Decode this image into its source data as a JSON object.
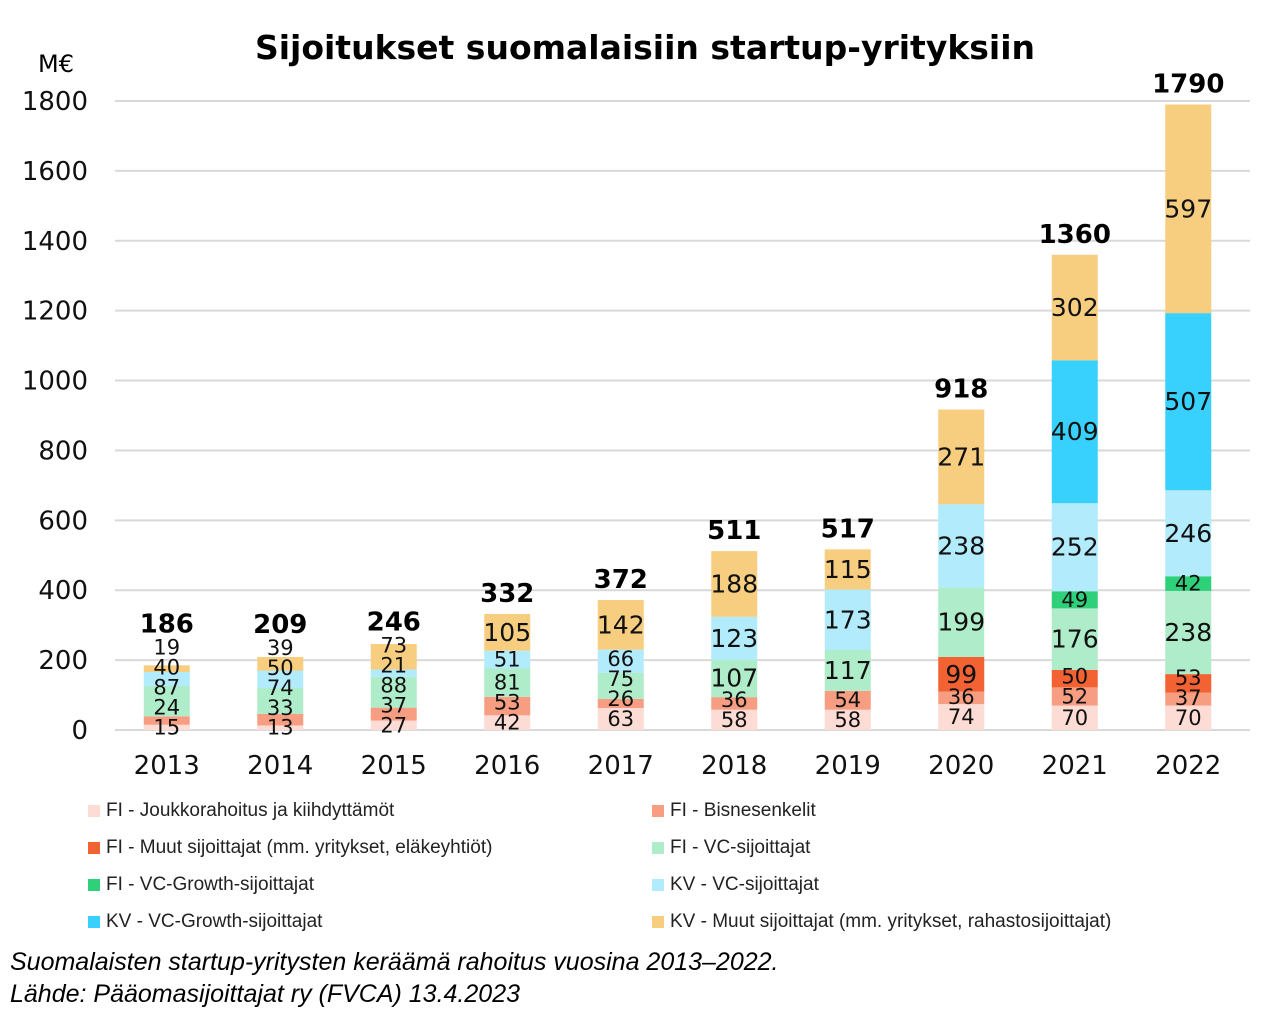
{
  "chart_data": {
    "type": "bar",
    "stacked": true,
    "title": "Sijoitukset suomalaisiin startup-yrityksiin",
    "ylabel": "M€",
    "xlabel": "",
    "ylim": [
      0,
      1800
    ],
    "yticks": [
      0,
      200,
      400,
      600,
      800,
      1000,
      1200,
      1400,
      1600,
      1800
    ],
    "grid": true,
    "legend_position": "bottom",
    "categories": [
      "2013",
      "2014",
      "2015",
      "2016",
      "2017",
      "2018",
      "2019",
      "2020",
      "2021",
      "2022"
    ],
    "totals": [
      186,
      209,
      246,
      332,
      372,
      511,
      517,
      918,
      1360,
      1790
    ],
    "series": [
      {
        "name": "FI - Joukkorahoitus ja kiihdyttämöt",
        "color": "#fcdcd4",
        "values": [
          15,
          13,
          27,
          42,
          63,
          58,
          58,
          74,
          70,
          70
        ]
      },
      {
        "name": "FI - Bisnesenkelit",
        "color": "#f79d82",
        "values": [
          24,
          33,
          37,
          53,
          26,
          36,
          54,
          36,
          52,
          37
        ]
      },
      {
        "name": "FI - Muut sijoittajat (mm. yritykset, eläkeyhtiöt)",
        "color": "#f26232",
        "values": [
          0,
          0,
          0,
          0,
          0,
          0,
          0,
          99,
          50,
          53
        ]
      },
      {
        "name": "FI - VC-sijoittajat",
        "color": "#aeecca",
        "values": [
          87,
          74,
          88,
          81,
          75,
          107,
          117,
          199,
          176,
          238
        ]
      },
      {
        "name": "FI - VC-Growth-sijoittajat",
        "color": "#2fd07a",
        "values": [
          0,
          0,
          0,
          0,
          0,
          0,
          0,
          0,
          49,
          42
        ]
      },
      {
        "name": "KV - VC-sijoittajat",
        "color": "#b1ebfc",
        "values": [
          40,
          50,
          21,
          51,
          66,
          123,
          173,
          238,
          252,
          246
        ]
      },
      {
        "name": "KV - VC-Growth-sijoittajat",
        "color": "#38d0fc",
        "values": [
          0,
          0,
          0,
          0,
          0,
          0,
          0,
          0,
          409,
          507
        ]
      },
      {
        "name": "KV - Muut sijoittajat (mm. yritykset, rahastosijoittajat)",
        "color": "#f7cd80",
        "values": [
          19,
          39,
          73,
          105,
          142,
          188,
          115,
          271,
          302,
          597
        ]
      }
    ]
  },
  "caption": {
    "line1": "Suomalaisten startup-yritysten keräämä rahoitus vuosina 2013–2022.",
    "line2": "Lähde: Pääomasijoittajat ry (FVCA) 13.4.2023"
  }
}
